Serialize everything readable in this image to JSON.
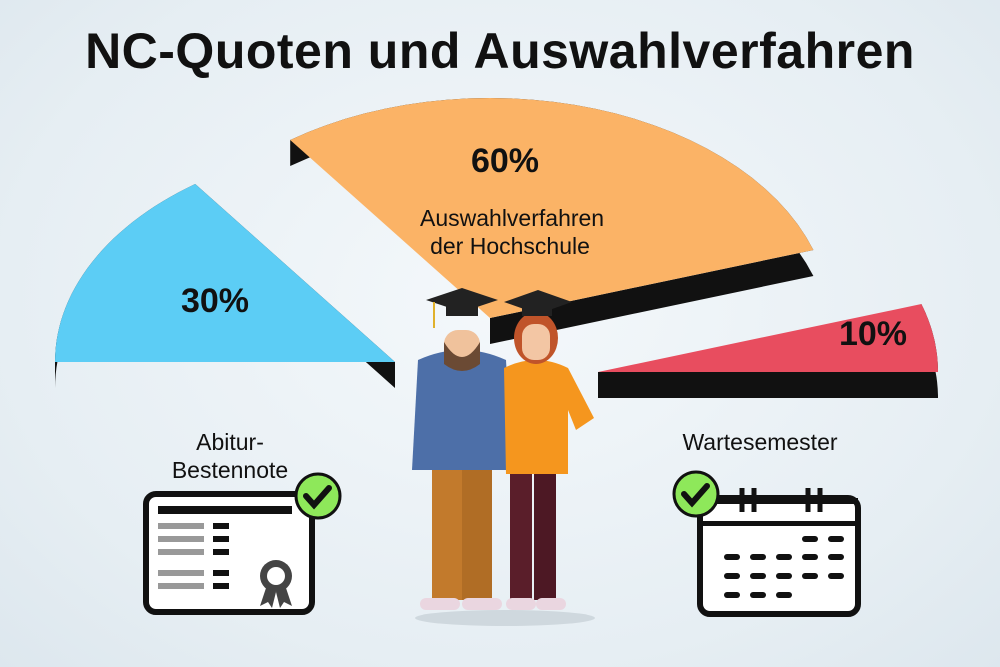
{
  "title": "NC-Quoten und Auswahlverfahren",
  "chart_data": {
    "type": "pie",
    "title": "NC-Quoten und Auswahlverfahren",
    "slices": [
      {
        "label": "Abitur-Bestennote",
        "label_lines": [
          "Abitur-",
          "Bestennote"
        ],
        "value": 30,
        "value_label": "30%",
        "color": "#5ccdf5",
        "icon": "certificate-icon"
      },
      {
        "label": "Auswahlverfahren der Hochschule",
        "label_lines": [
          "Auswahlverfahren",
          "der Hochschule"
        ],
        "value": 60,
        "value_label": "60%",
        "color": "#fbb366",
        "icon": "students-illustration"
      },
      {
        "label": "Wartesemester",
        "label_lines": [
          "Wartesemester"
        ],
        "value": 10,
        "value_label": "10%",
        "color": "#e84d5f",
        "icon": "calendar-icon"
      }
    ],
    "exploded": true,
    "legend": "none"
  },
  "colors": {
    "check": "#8ee85a",
    "extrusion": "#111111"
  }
}
